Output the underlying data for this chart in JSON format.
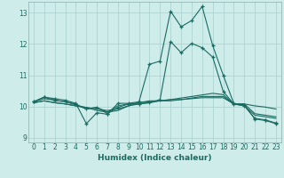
{
  "title": "",
  "xlabel": "Humidex (Indice chaleur)",
  "bg_color": "#ceecea",
  "grid_color": "#aed4d2",
  "line_color": "#1a6b62",
  "xlim": [
    -0.5,
    23.5
  ],
  "ylim": [
    8.85,
    13.35
  ],
  "yticks": [
    9,
    10,
    11,
    12,
    13
  ],
  "xticks": [
    0,
    1,
    2,
    3,
    4,
    5,
    6,
    7,
    8,
    9,
    10,
    11,
    12,
    13,
    14,
    15,
    16,
    17,
    18,
    19,
    20,
    21,
    22,
    23
  ],
  "series": [
    [
      10.15,
      10.3,
      10.25,
      10.2,
      10.1,
      9.45,
      9.8,
      9.75,
      10.1,
      10.1,
      10.15,
      11.35,
      11.45,
      13.05,
      12.55,
      12.75,
      13.2,
      11.95,
      11.0,
      10.1,
      10.05,
      9.6,
      9.55,
      9.45
    ],
    [
      10.15,
      10.25,
      10.2,
      10.15,
      10.05,
      9.92,
      9.97,
      9.82,
      10.02,
      10.08,
      10.12,
      10.15,
      10.18,
      10.22,
      10.27,
      10.32,
      10.37,
      10.42,
      10.38,
      10.08,
      10.08,
      10.02,
      9.98,
      9.92
    ],
    [
      10.12,
      10.18,
      10.12,
      10.08,
      10.02,
      9.97,
      9.87,
      9.82,
      9.87,
      10.02,
      10.12,
      10.18,
      10.18,
      10.22,
      10.22,
      10.27,
      10.32,
      10.32,
      10.32,
      10.08,
      10.02,
      9.72,
      9.67,
      9.62
    ],
    [
      10.12,
      10.18,
      10.12,
      10.08,
      10.02,
      9.97,
      9.92,
      9.87,
      9.92,
      10.02,
      10.08,
      10.12,
      10.18,
      10.18,
      10.22,
      10.25,
      10.28,
      10.28,
      10.28,
      10.08,
      10.08,
      9.77,
      9.72,
      9.67
    ],
    [
      10.15,
      10.3,
      10.2,
      10.15,
      10.08,
      9.92,
      9.97,
      9.77,
      9.97,
      10.08,
      10.08,
      10.12,
      10.22,
      12.08,
      11.72,
      12.02,
      11.88,
      11.58,
      10.48,
      10.08,
      10.02,
      9.62,
      9.57,
      9.47
    ]
  ],
  "marker_series": [
    0,
    4
  ],
  "marker_size": 3.5,
  "marker_lw": 0.9,
  "linewidth": 0.8
}
